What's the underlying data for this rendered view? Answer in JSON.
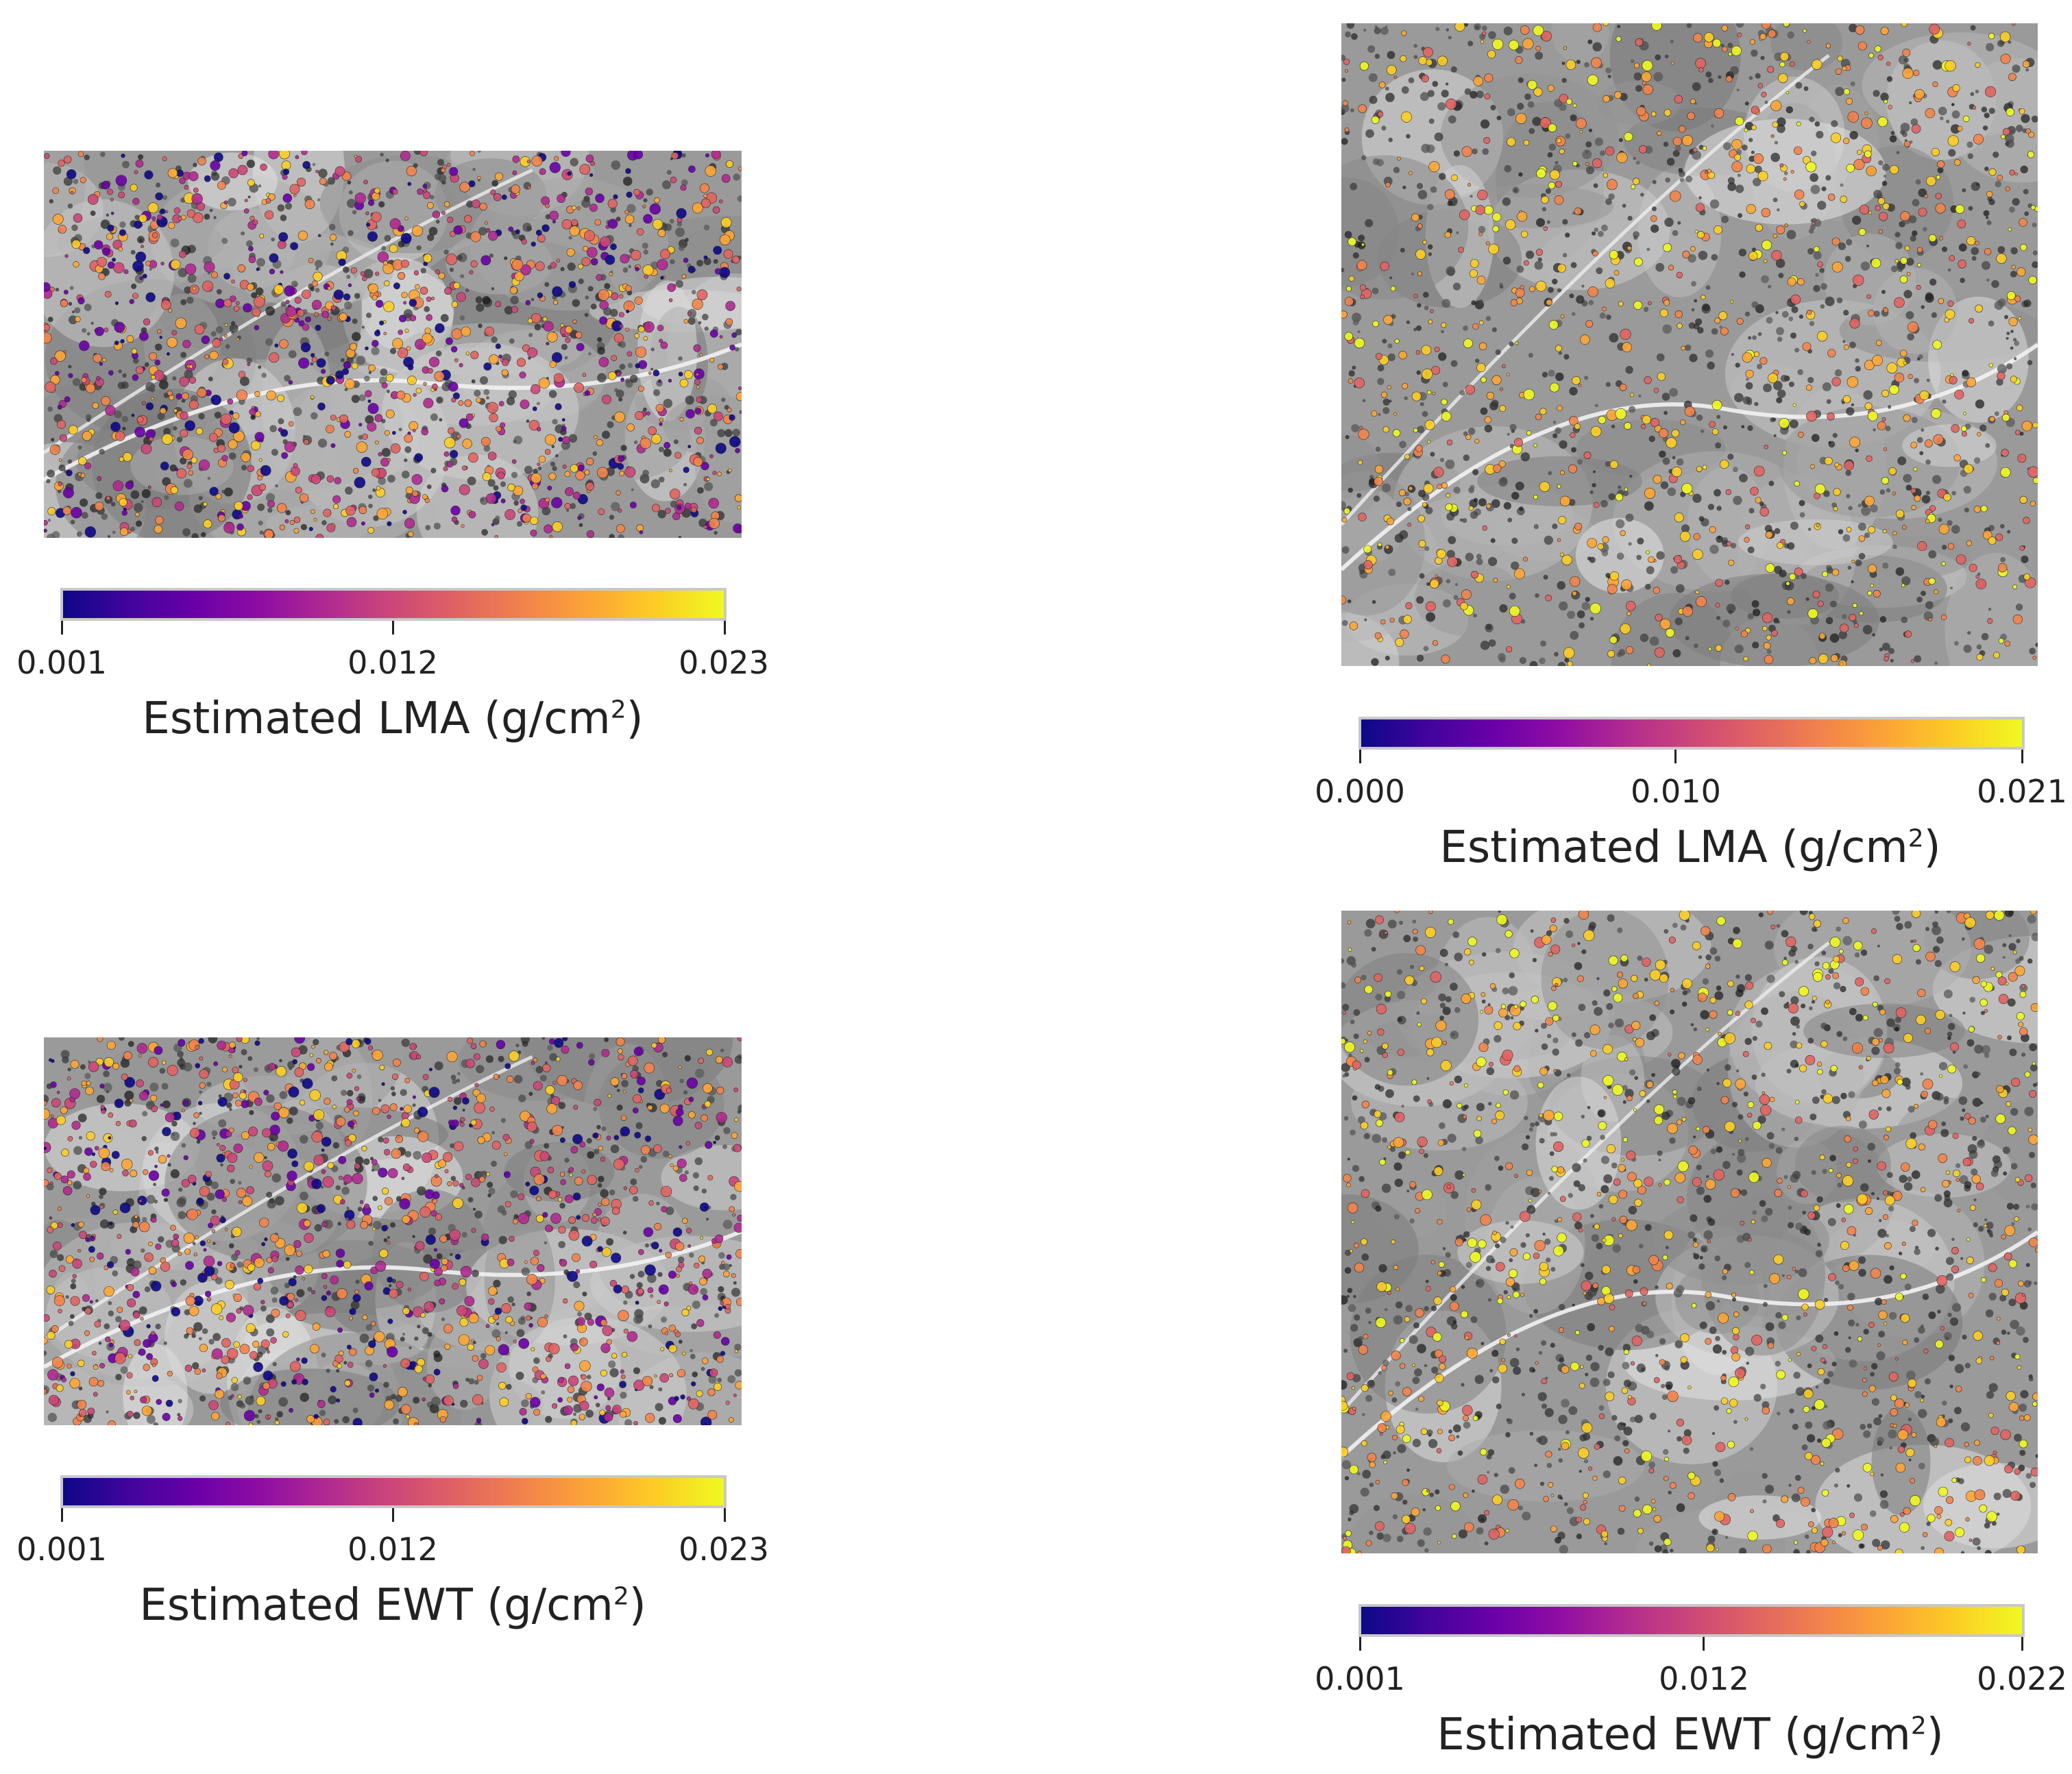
{
  "panels": [
    {
      "id": "top-left",
      "colorbar": {
        "ticks": [
          "0.001",
          "0.012",
          "0.023"
        ],
        "label": "Estimated LMA",
        "unit_base": "(g/cm",
        "unit_exp": "2",
        "unit_close": ")"
      }
    },
    {
      "id": "top-right",
      "colorbar": {
        "ticks": [
          "0.000",
          "0.010",
          "0.021"
        ],
        "label": "Estimated LMA",
        "unit_base": "(g/cm",
        "unit_exp": "2",
        "unit_close": ")"
      }
    },
    {
      "id": "bottom-left",
      "colorbar": {
        "ticks": [
          "0.001",
          "0.012",
          "0.023"
        ],
        "label": "Estimated EWT",
        "unit_base": "(g/cm",
        "unit_exp": "2",
        "unit_close": ")"
      }
    },
    {
      "id": "bottom-right",
      "colorbar": {
        "ticks": [
          "0.001",
          "0.012",
          "0.022"
        ],
        "label": "Estimated EWT",
        "unit_base": "(g/cm",
        "unit_exp": "2",
        "unit_close": ")"
      }
    }
  ],
  "colormap": "plasma"
}
